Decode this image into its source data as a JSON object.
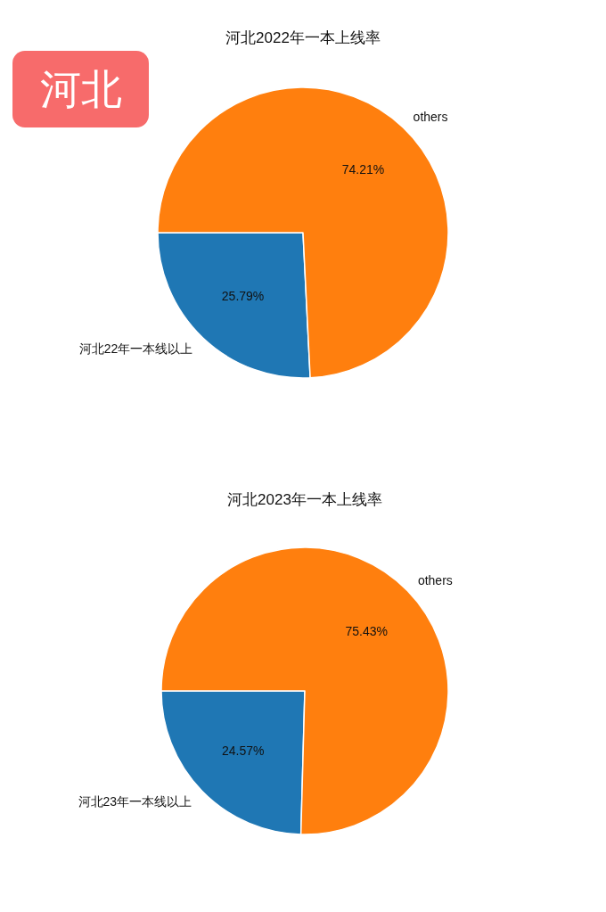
{
  "chart_data": [
    {
      "type": "pie",
      "title": "河北2022年一本上线率",
      "categories": [
        "河北22年一本线以上",
        "others"
      ],
      "values": [
        25.79,
        74.21
      ],
      "colors": [
        "#1f77b4",
        "#ff7f0e"
      ],
      "value_labels": [
        "25.79%",
        "74.21%"
      ],
      "annotations": [
        "河北"
      ]
    },
    {
      "type": "pie",
      "title": "河北2023年一本上线率",
      "categories": [
        "河北23年一本线以上",
        "others"
      ],
      "values": [
        24.57,
        75.43
      ],
      "colors": [
        "#1f77b4",
        "#ff7f0e"
      ],
      "value_labels": [
        "24.57%",
        "75.43%"
      ]
    }
  ]
}
